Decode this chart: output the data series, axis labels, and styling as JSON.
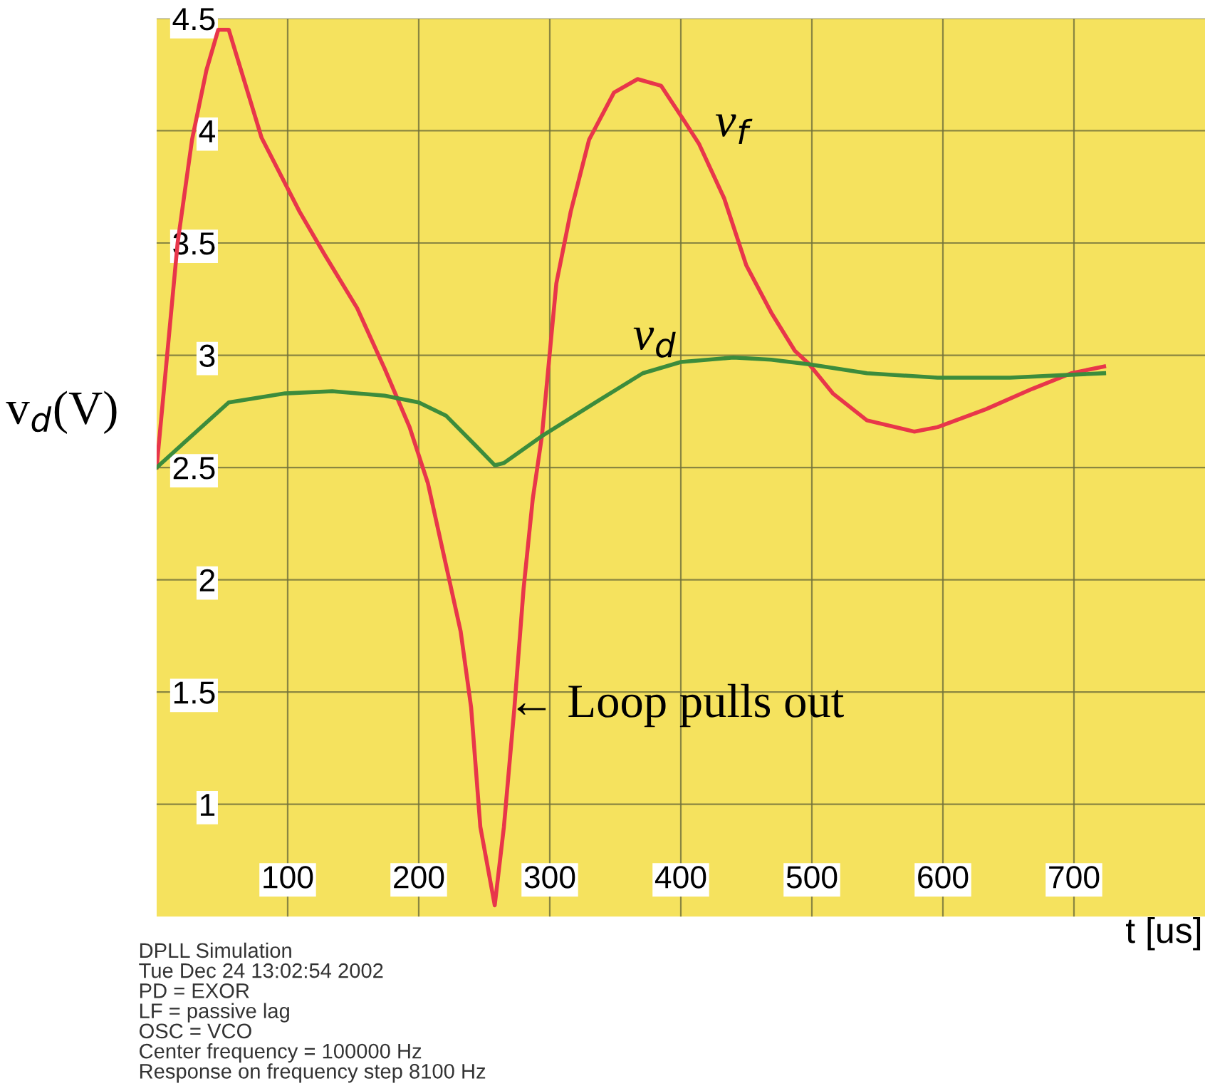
{
  "chart_data": {
    "type": "line",
    "xlabel": "t [us]",
    "ylabel": "v$_{d}$(V)",
    "xlim": [
      0,
      800
    ],
    "ylim": [
      0.5,
      4.5
    ],
    "xticks": [
      100,
      200,
      300,
      400,
      500,
      600,
      700
    ],
    "yticks": [
      1,
      1.5,
      2,
      2.5,
      3,
      3.5,
      4,
      4.5
    ],
    "grid": true,
    "legend": false,
    "marker": "none",
    "line_style": "solid",
    "series": [
      {
        "name": "v$_{f}$",
        "color": "#e8364a",
        "x": [
          0,
          8,
          16,
          27,
          38,
          47,
          55,
          80,
          109,
          128,
          153,
          174,
          193,
          207,
          221,
          232,
          240,
          247,
          258,
          265,
          273,
          280,
          287,
          294,
          305,
          316,
          330,
          349,
          367,
          385,
          403,
          414,
          433,
          450,
          469,
          487,
          498,
          516,
          542,
          578,
          596,
          633,
          668,
          698,
          723
        ],
        "values": [
          2.5,
          3.0,
          3.5,
          3.96,
          4.27,
          4.45,
          4.45,
          3.97,
          3.64,
          3.45,
          3.21,
          2.94,
          2.68,
          2.43,
          2.06,
          1.77,
          1.43,
          0.9,
          0.55,
          0.9,
          1.43,
          1.96,
          2.36,
          2.64,
          3.32,
          3.64,
          3.96,
          4.17,
          4.23,
          4.2,
          4.04,
          3.94,
          3.7,
          3.4,
          3.19,
          3.02,
          2.96,
          2.83,
          2.71,
          2.66,
          2.68,
          2.76,
          2.85,
          2.92,
          2.95
        ]
      },
      {
        "name": "v$_{d}$",
        "color": "#3c8c3c",
        "x": [
          0,
          55,
          98,
          134,
          174,
          200,
          221,
          243,
          258,
          265,
          294,
          335,
          371,
          400,
          440,
          469,
          498,
          542,
          596,
          651,
          723
        ],
        "values": [
          2.5,
          2.79,
          2.83,
          2.84,
          2.82,
          2.79,
          2.73,
          2.6,
          2.51,
          2.52,
          2.64,
          2.79,
          2.92,
          2.97,
          2.99,
          2.98,
          2.96,
          2.92,
          2.9,
          2.9,
          2.92
        ]
      }
    ],
    "annotations": [
      "← Loop pulls out",
      "DPLL Simulation\nTue Dec 24 13:02:54 2002\nPD = EXOR\nLF = passive lag\nOSC = VCO\nCenter frequency = 100000 Hz\nResponse on frequency step 8100 Hz"
    ]
  }
}
